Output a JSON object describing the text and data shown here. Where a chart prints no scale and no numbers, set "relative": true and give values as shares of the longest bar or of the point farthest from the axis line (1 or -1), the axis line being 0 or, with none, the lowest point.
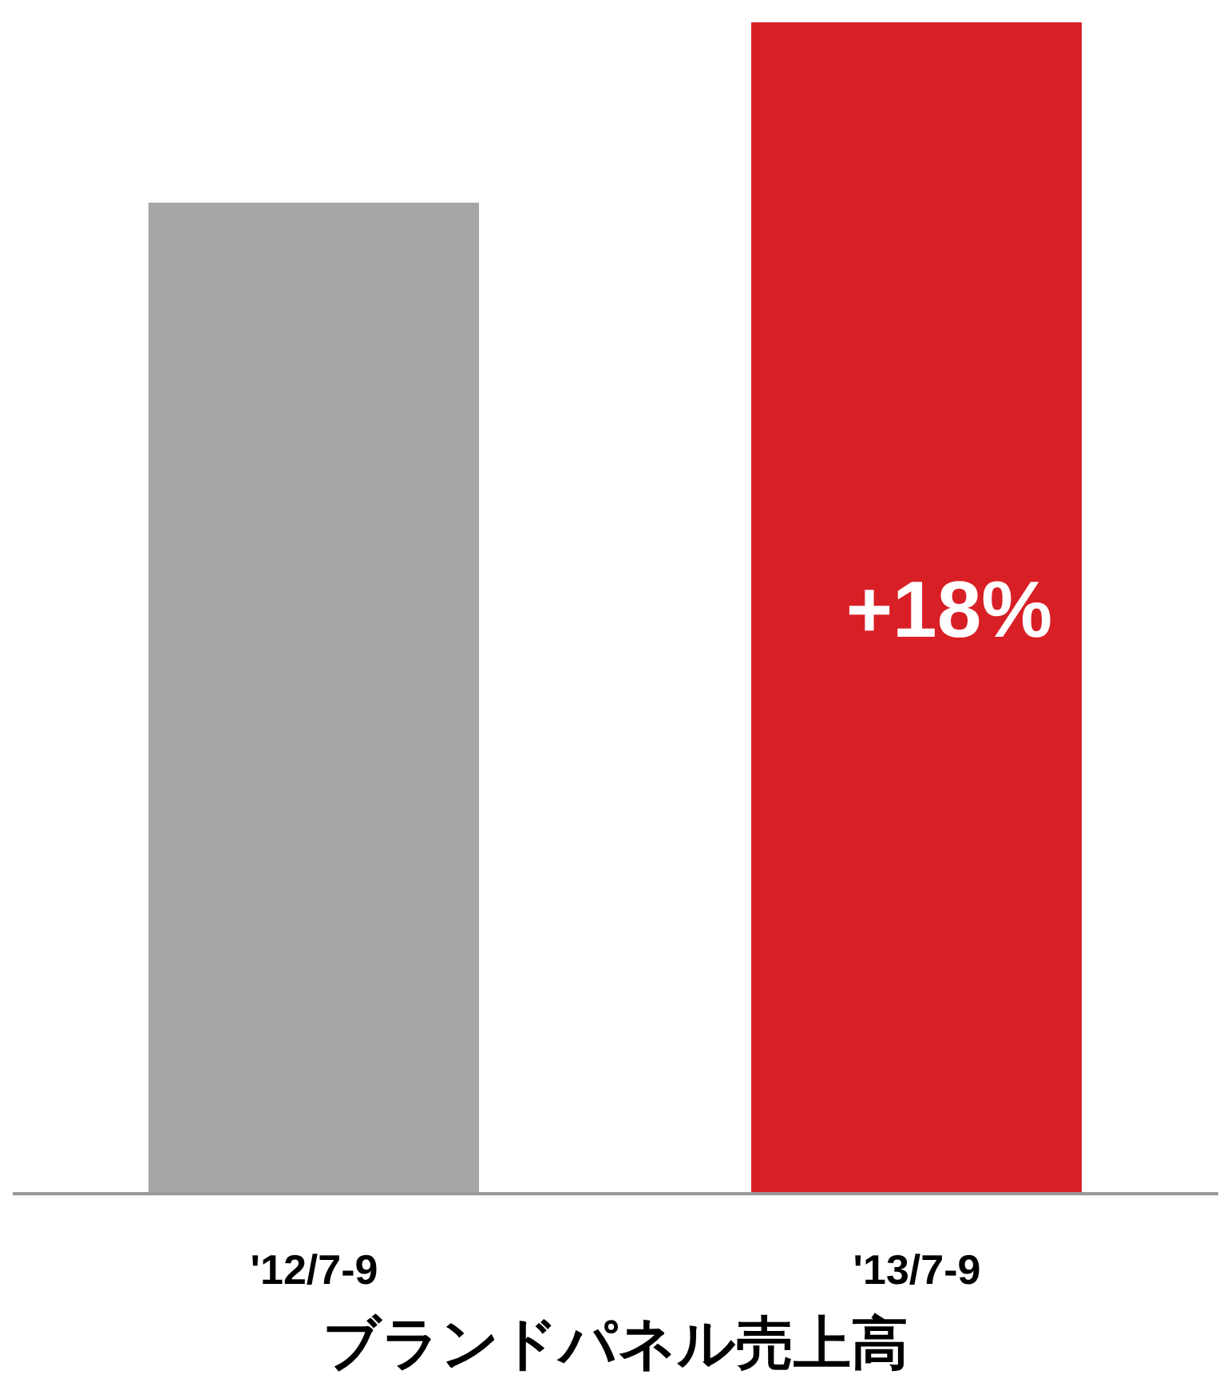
{
  "chart_data": {
    "type": "bar",
    "relative": true,
    "categories": [
      "'12/7-9",
      "'13/7-9"
    ],
    "values": [
      0.846,
      1
    ],
    "colors": [
      "#a6a6a6",
      "#d91f26"
    ],
    "xlabel": "ブランドパネル売上高",
    "annotations": [
      "+18%"
    ],
    "grid": false,
    "legend": false
  }
}
